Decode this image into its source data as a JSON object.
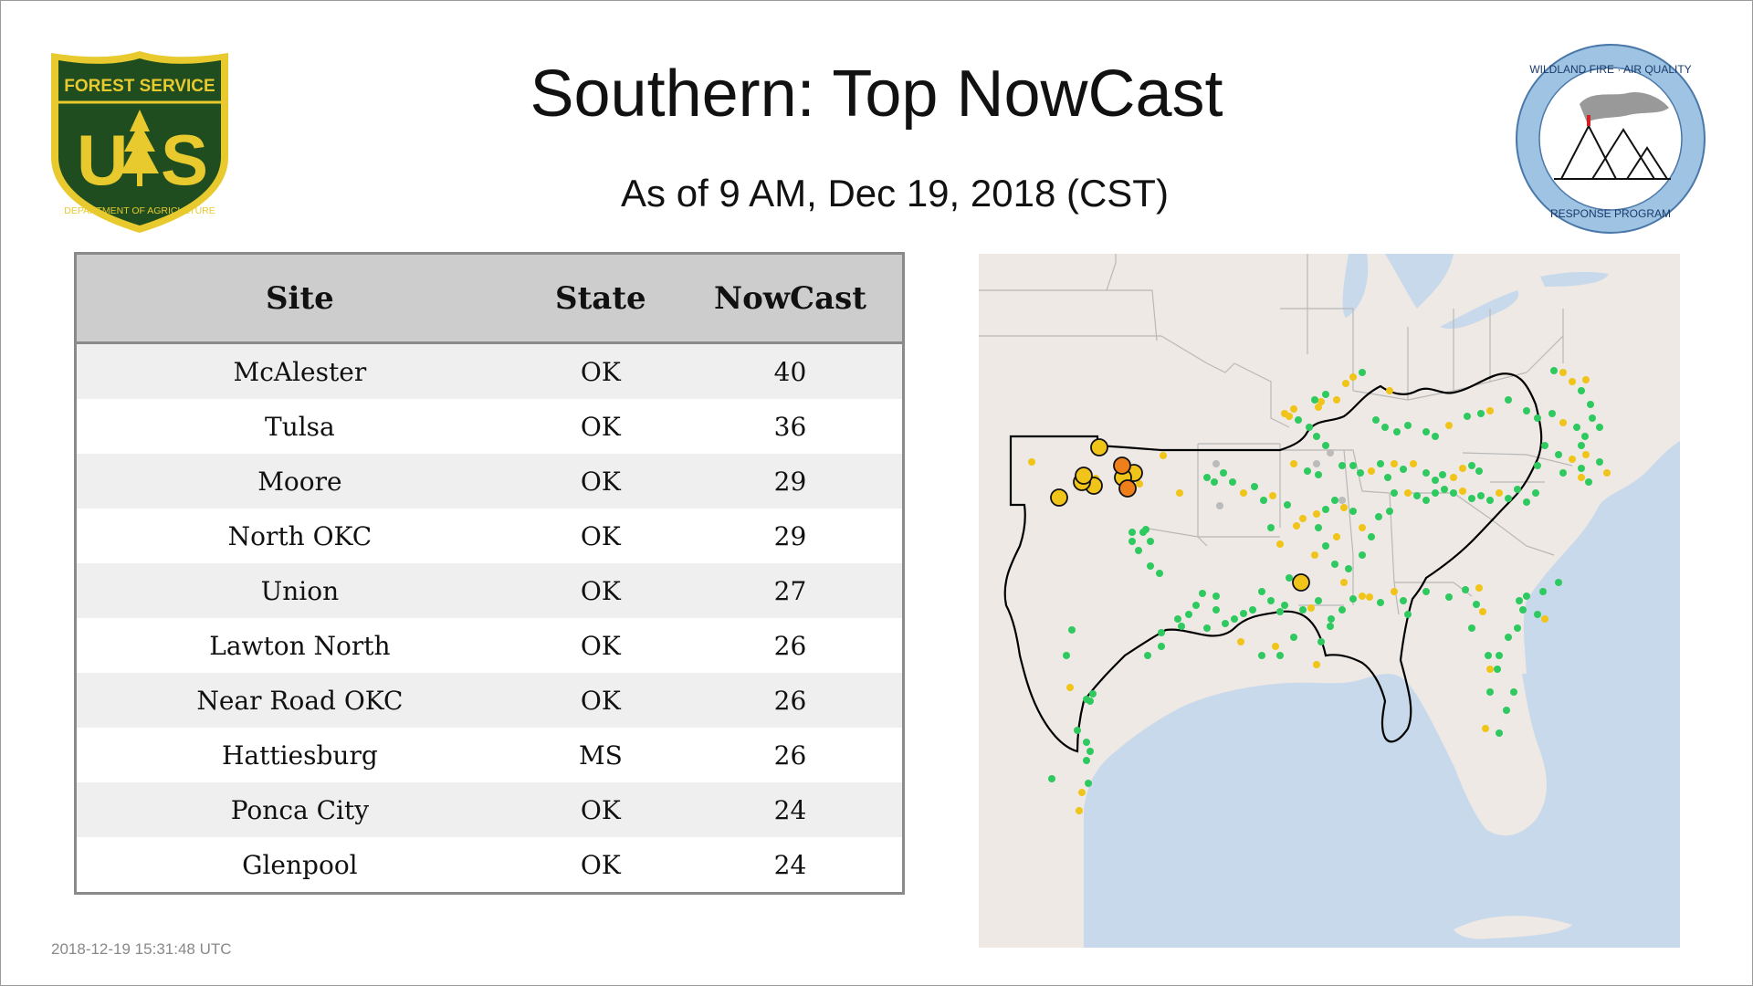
{
  "page": {
    "title": "Southern: Top NowCast",
    "subtitle": "As of  9 AM, Dec 19, 2018 (CST)",
    "timestamp": "2018-12-19 15:31:48 UTC"
  },
  "logos": {
    "forest_service": {
      "top_text": "FOREST SERVICE",
      "bottom_text": "DEPARTMENT OF AGRICULTURE",
      "letter_left": "U",
      "letter_right": "S",
      "icon": "pine-tree-shield-icon",
      "colors": {
        "shield": "#1f4d1f",
        "gold": "#e8c92e"
      }
    },
    "wildland_fire": {
      "top_text": "WILDLAND FIRE · AIR QUALITY",
      "bottom_text": "RESPONSE PROGRAM",
      "icon": "mountains-smoke-icon",
      "colors": {
        "ring": "#9ec3e3",
        "smoke": "#999999",
        "flame": "#d42020"
      }
    }
  },
  "table": {
    "headers": {
      "site": "Site",
      "state": "State",
      "nowcast": "NowCast"
    },
    "rows": [
      {
        "site": "McAlester",
        "state": "OK",
        "nowcast": "40"
      },
      {
        "site": "Tulsa",
        "state": "OK",
        "nowcast": "36"
      },
      {
        "site": "Moore",
        "state": "OK",
        "nowcast": "29"
      },
      {
        "site": "North OKC",
        "state": "OK",
        "nowcast": "29"
      },
      {
        "site": "Union",
        "state": "OK",
        "nowcast": "27"
      },
      {
        "site": "Lawton North",
        "state": "OK",
        "nowcast": "26"
      },
      {
        "site": "Near Road OKC",
        "state": "OK",
        "nowcast": "26"
      },
      {
        "site": "Hattiesburg",
        "state": "MS",
        "nowcast": "26"
      },
      {
        "site": "Ponca City",
        "state": "OK",
        "nowcast": "24"
      },
      {
        "site": "Glenpool",
        "state": "OK",
        "nowcast": "24"
      }
    ]
  },
  "map": {
    "colors": {
      "land": "#eee9e5",
      "water": "#c7d9ea",
      "borders": "#b8b8b8",
      "region_outline": "#000000",
      "aqi_good": "#2ec95f",
      "aqi_moderate": "#f0c419",
      "aqi_usg": "#ef7f1a",
      "no_data": "#bbbbbb"
    }
  }
}
